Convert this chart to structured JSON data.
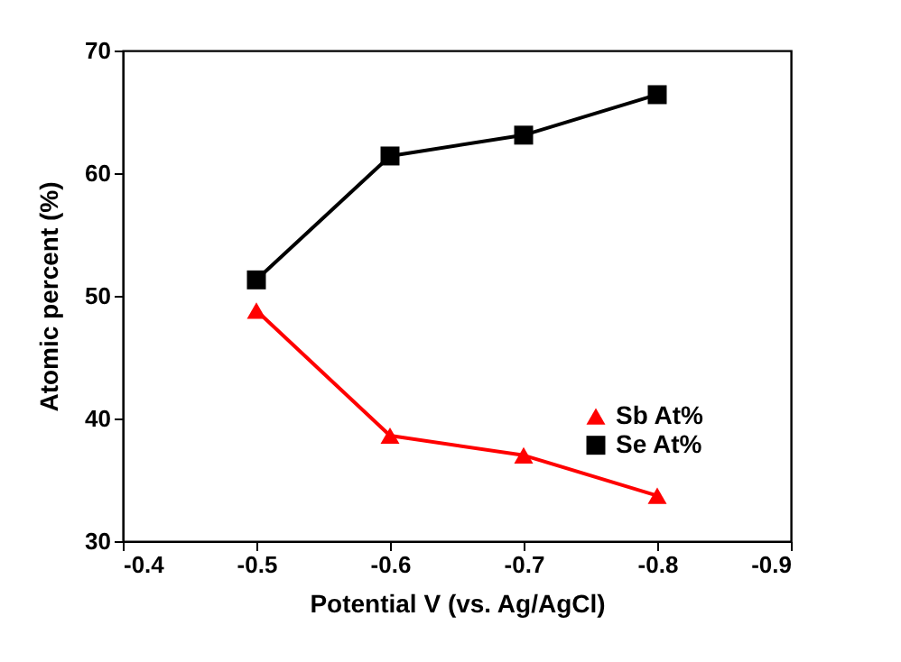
{
  "chart_data": {
    "type": "line",
    "xlabel": "Potential V (vs. Ag/AgCl)",
    "ylabel": "Atomic percent (%)",
    "x": [
      -0.5,
      -0.6,
      -0.7,
      -0.8
    ],
    "series": [
      {
        "name": "Sb At%",
        "color": "#ff0000",
        "marker": "triangle",
        "values": [
          48.8,
          38.6,
          37.0,
          33.7
        ]
      },
      {
        "name": "Se At%",
        "color": "#000000",
        "marker": "square",
        "values": [
          51.3,
          61.4,
          63.1,
          66.4
        ]
      }
    ],
    "xlim": [
      -0.4,
      -0.9
    ],
    "xticks": [
      -0.4,
      -0.5,
      -0.6,
      -0.7,
      -0.8,
      -0.9
    ],
    "ylim": [
      30,
      70
    ],
    "yticks": [
      30,
      40,
      50,
      60,
      70
    ],
    "legend": "bottom right",
    "grid": false
  }
}
